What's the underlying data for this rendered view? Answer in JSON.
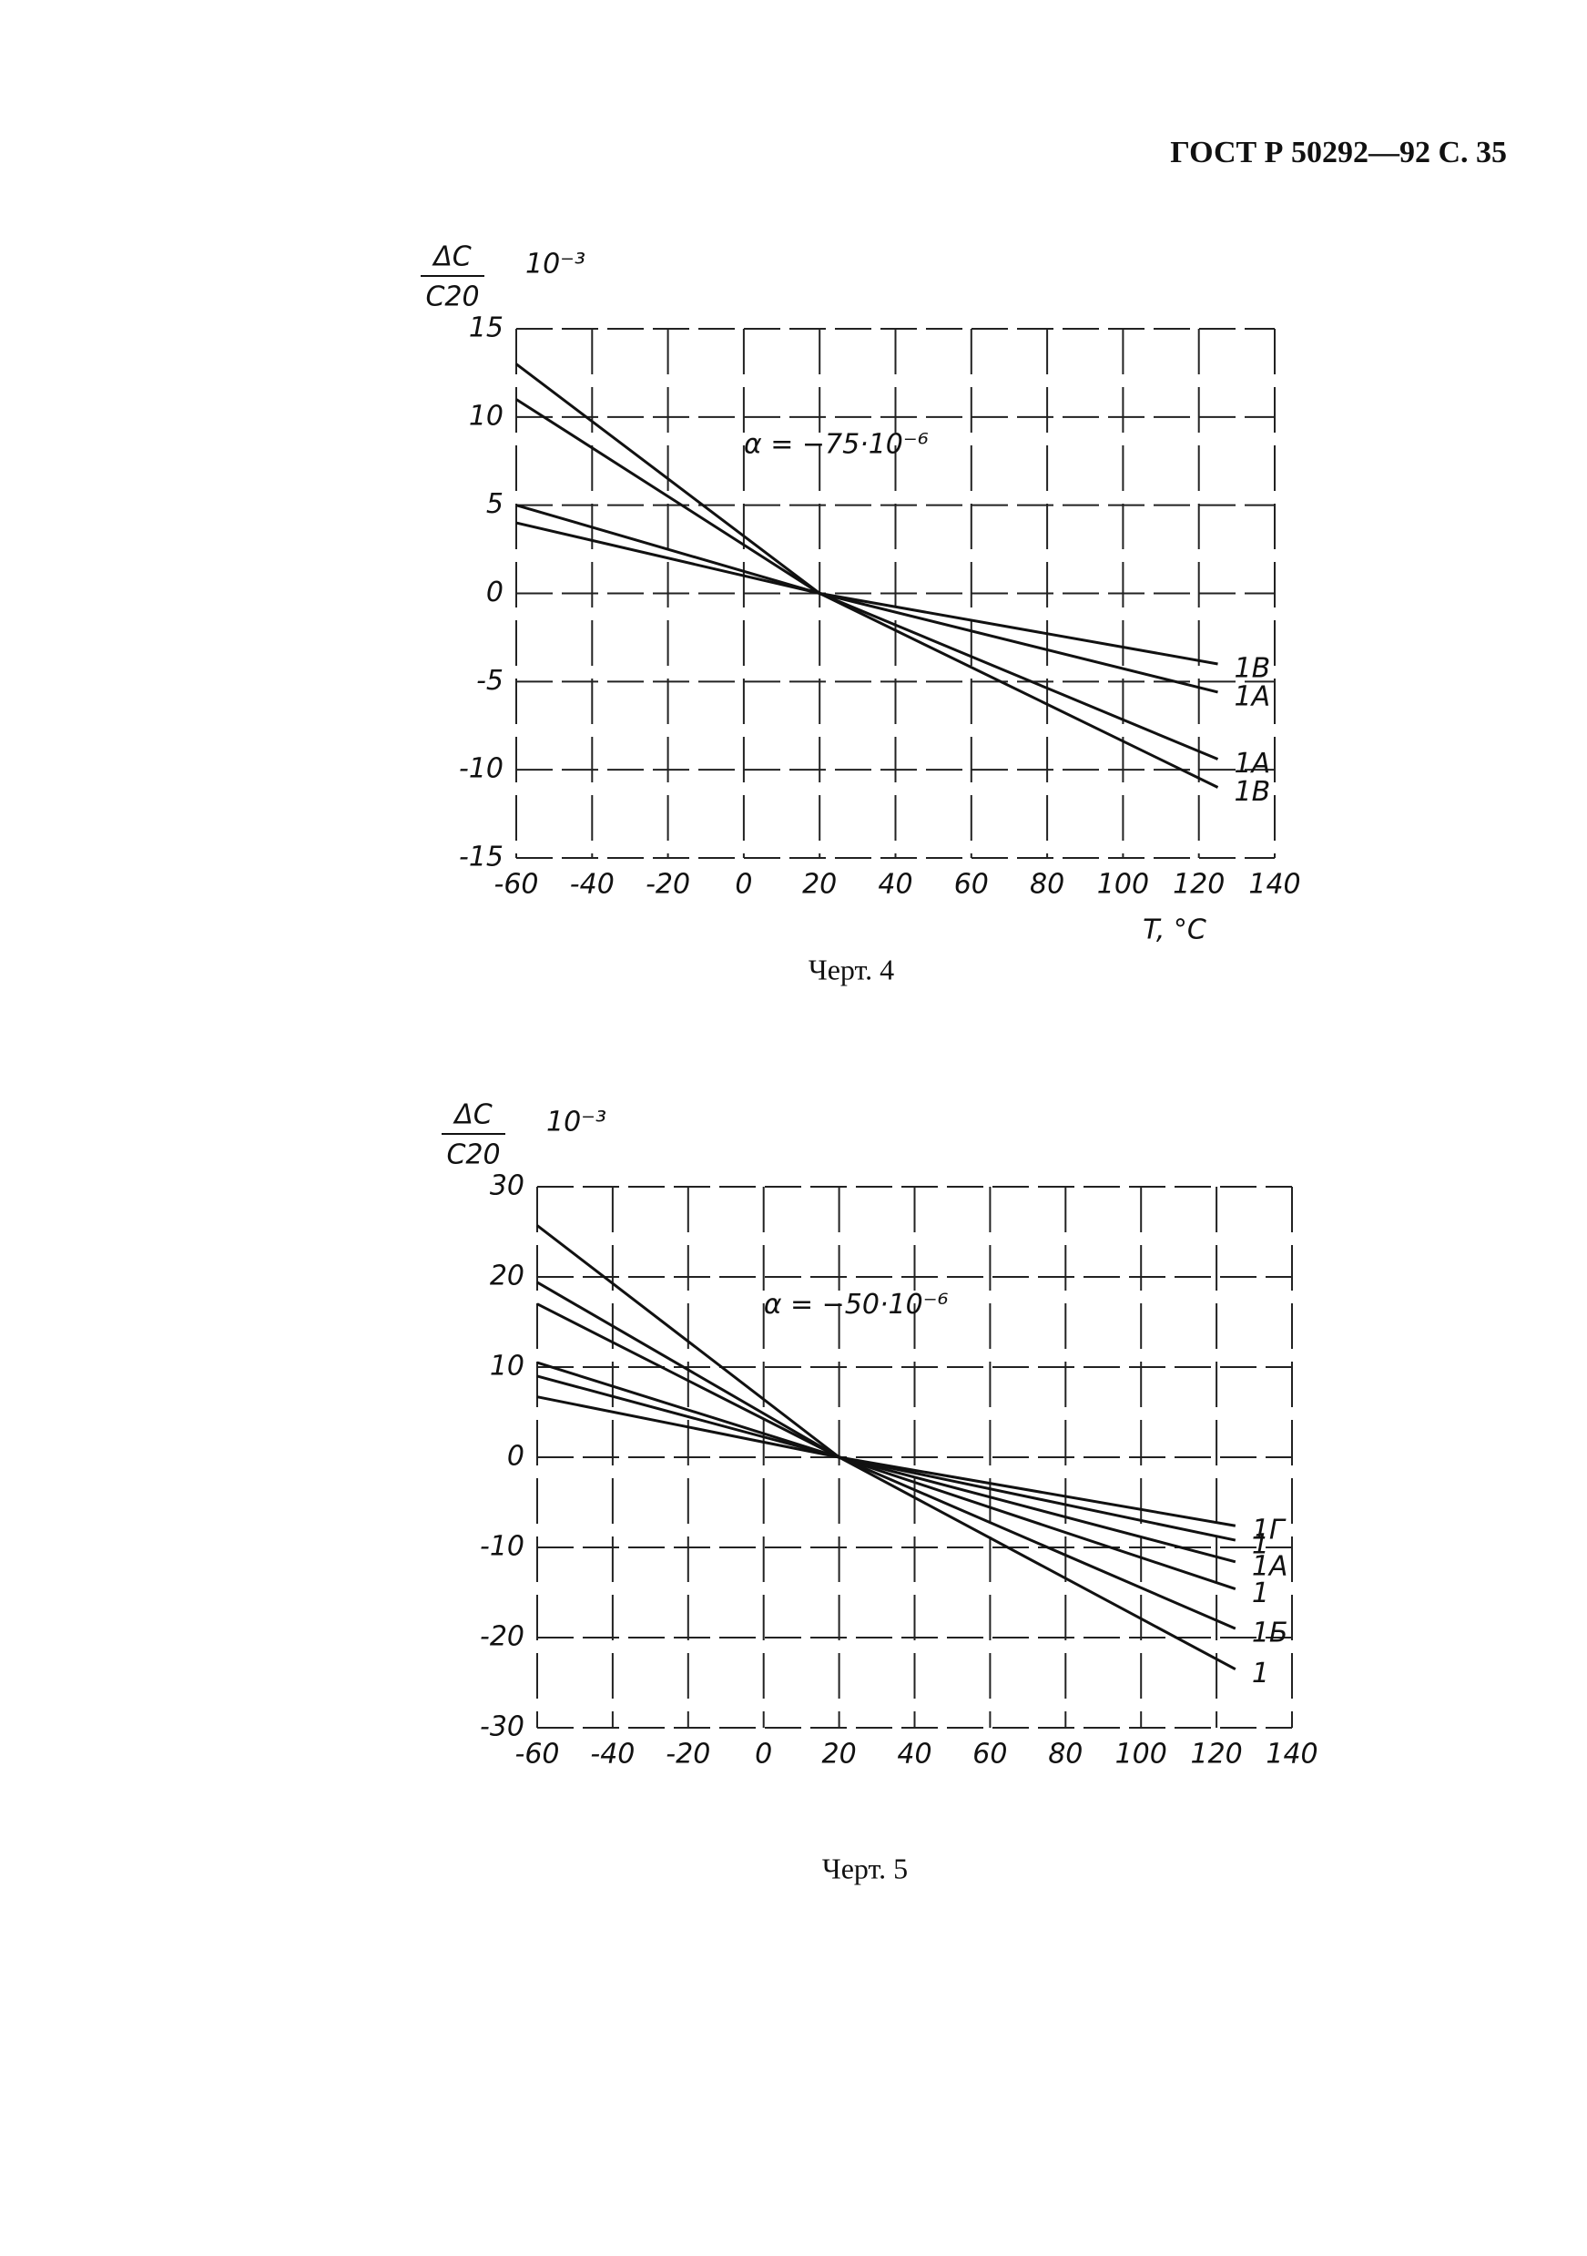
{
  "header": "ГОСТ Р 50292—92 С. 35",
  "captions": [
    "Черт. 4",
    "Черт. 5"
  ],
  "chart_data": [
    {
      "type": "line",
      "y_label_top": "ΔC",
      "y_label_bottom": "C20",
      "y_unit": "10⁻³",
      "x_label": "T, °C",
      "annotation": "α = −75·10⁻⁶",
      "x": [
        -60,
        20,
        125
      ],
      "xlim": [
        -60,
        140
      ],
      "xticks": [
        -60,
        -40,
        -20,
        0,
        20,
        40,
        60,
        80,
        100,
        120,
        140
      ],
      "ylim": [
        -15,
        15
      ],
      "yticks": [
        -15,
        -10,
        -5,
        0,
        5,
        10,
        15
      ],
      "grid": true,
      "series": [
        {
          "name": "1B",
          "color": "#111",
          "values": [
            13,
            0,
            -11
          ]
        },
        {
          "name": "1A",
          "color": "#111",
          "values": [
            11,
            0,
            -9.4
          ]
        },
        {
          "name": "1A",
          "color": "#111",
          "values": [
            5,
            0,
            -5.6
          ]
        },
        {
          "name": "1B",
          "color": "#111",
          "values": [
            4,
            0,
            -4
          ]
        }
      ]
    },
    {
      "type": "line",
      "y_label_top": "ΔC",
      "y_label_bottom": "C20",
      "y_unit": "10⁻³",
      "annotation": "α = −50·10⁻⁶",
      "x": [
        -60,
        20,
        125
      ],
      "xlim": [
        -60,
        140
      ],
      "xticks": [
        -60,
        -40,
        -20,
        0,
        20,
        40,
        60,
        80,
        100,
        120,
        140
      ],
      "ylim": [
        -30,
        30
      ],
      "yticks": [
        -30,
        -20,
        -10,
        0,
        10,
        20,
        30
      ],
      "grid": true,
      "series": [
        {
          "name": "1Г",
          "color": "#111",
          "values": [
            6.7,
            0,
            -7.6
          ]
        },
        {
          "name": "1",
          "color": "#111",
          "values": [
            9,
            0,
            -9.2
          ]
        },
        {
          "name": "1А",
          "color": "#111",
          "values": [
            10.5,
            0,
            -11.6
          ]
        },
        {
          "name": "1",
          "color": "#111",
          "values": [
            17,
            0,
            -14.6
          ]
        },
        {
          "name": "1Б",
          "color": "#111",
          "values": [
            19.4,
            0,
            -19
          ]
        },
        {
          "name": "1",
          "color": "#111",
          "values": [
            25.7,
            0,
            -23.5
          ]
        }
      ]
    }
  ]
}
